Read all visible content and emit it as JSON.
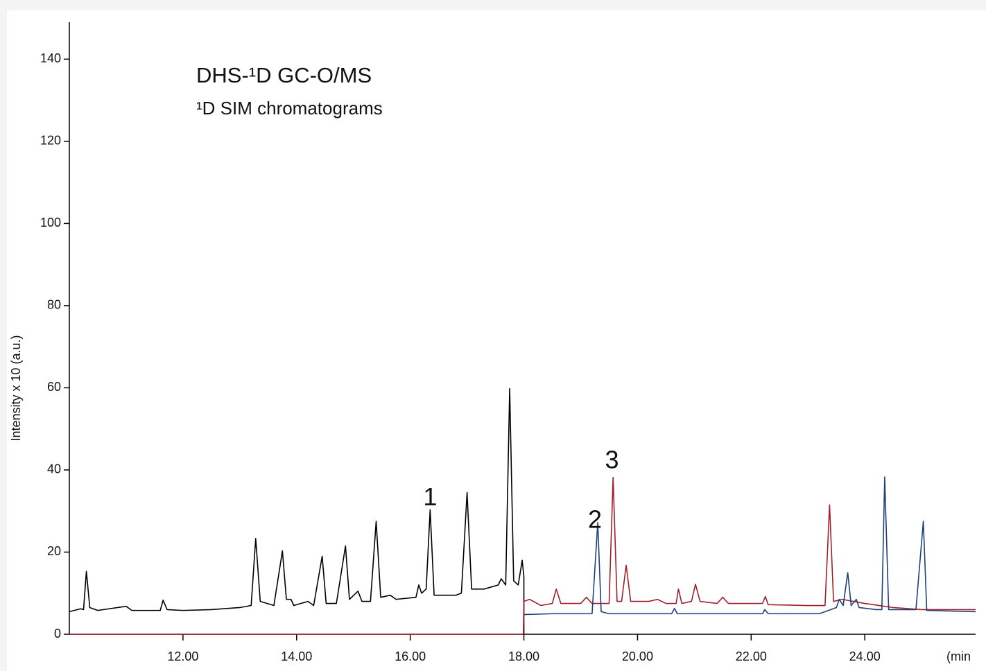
{
  "chart_data": {
    "type": "line",
    "title": "DHS-¹D GC-O/MS",
    "subtitle": "¹D SIM chromatograms",
    "y_label": "Intensity x 10 (a.u.)",
    "x_label": "(min",
    "xlim": [
      10,
      25.95
    ],
    "xticks": [
      {
        "value": 12,
        "label": "12.00"
      },
      {
        "value": 14,
        "label": "14.00"
      },
      {
        "value": 16,
        "label": "16.00"
      },
      {
        "value": 18,
        "label": "18.00"
      },
      {
        "value": 20,
        "label": "20.00"
      },
      {
        "value": 22,
        "label": "22.00"
      },
      {
        "value": 24,
        "label": "24.00"
      }
    ],
    "ylim": [
      0,
      149
    ],
    "yticks": [
      0,
      20,
      40,
      60,
      80,
      100,
      120,
      140
    ],
    "annotations": [
      {
        "text": "1",
        "x": 16.35,
        "y": 33
      },
      {
        "text": "2",
        "x": 19.25,
        "y": 27.5
      },
      {
        "text": "3",
        "x": 19.55,
        "y": 42
      }
    ],
    "series": [
      {
        "color": "#000000",
        "x": [
          10.0,
          10.2,
          10.25,
          10.3,
          10.36,
          10.5,
          11.0,
          11.1,
          11.6,
          11.65,
          11.72,
          12.0,
          12.5,
          13.0,
          13.2,
          13.28,
          13.36,
          13.6,
          13.75,
          13.82,
          13.9,
          13.95,
          14.2,
          14.3,
          14.45,
          14.52,
          14.7,
          14.86,
          14.93,
          15.08,
          15.15,
          15.3,
          15.4,
          15.48,
          15.65,
          15.75,
          16.1,
          16.15,
          16.2,
          16.28,
          16.35,
          16.42,
          16.8,
          16.9,
          17.0,
          17.08,
          17.3,
          17.55,
          17.6,
          17.68,
          17.75,
          17.82,
          17.9,
          17.97,
          18.0,
          18.0
        ],
        "values": [
          5.5,
          6.2,
          6,
          15.3,
          6.5,
          5.8,
          6.8,
          5.8,
          5.8,
          8.3,
          6,
          5.8,
          6,
          6.5,
          7,
          23.3,
          8,
          7,
          20.3,
          8.5,
          8.5,
          7,
          8,
          7,
          19,
          7.5,
          7.5,
          21.5,
          8.5,
          10.5,
          8,
          8,
          27.5,
          9,
          9.5,
          8.5,
          9,
          12,
          10,
          11,
          30.3,
          9.5,
          9.5,
          10,
          34.5,
          11,
          11,
          12,
          13.5,
          12,
          59.8,
          13,
          12,
          18,
          14,
          0
        ]
      },
      {
        "color": "#a0202a",
        "x": [
          10.0,
          17.99,
          18.0,
          18.1,
          18.3,
          18.5,
          18.57,
          18.65,
          19.0,
          19.1,
          19.2,
          19.5,
          19.57,
          19.64,
          19.72,
          19.8,
          19.88,
          20.2,
          20.35,
          20.5,
          20.68,
          20.72,
          20.78,
          20.95,
          21.02,
          21.1,
          21.4,
          21.5,
          21.6,
          22.2,
          22.25,
          22.3,
          23.0,
          23.3,
          23.38,
          23.45,
          23.6,
          24.0,
          24.5,
          25.0,
          25.5,
          25.95
        ],
        "values": [
          0,
          0,
          8,
          8.5,
          7,
          7.5,
          11,
          7.5,
          7.5,
          9,
          7.5,
          7.5,
          38.2,
          8,
          8,
          16.8,
          8,
          8,
          8.5,
          7.5,
          7.5,
          11,
          7.5,
          8,
          12.2,
          8,
          7.5,
          9,
          7.5,
          7.5,
          9.2,
          7.2,
          7,
          7,
          31.5,
          8,
          8.5,
          7.5,
          6.5,
          6,
          6,
          6
        ]
      },
      {
        "color": "#1f3f7a",
        "x": [
          18.0,
          18.5,
          19.2,
          19.3,
          19.36,
          19.5,
          20.6,
          20.65,
          20.7,
          22.2,
          22.24,
          22.3,
          23.2,
          23.5,
          23.55,
          23.62,
          23.7,
          23.76,
          23.85,
          23.9,
          24.2,
          24.3,
          24.35,
          24.42,
          24.9,
          25.03,
          25.09,
          25.95
        ],
        "values": [
          4.8,
          5,
          5,
          27.2,
          5.5,
          5,
          5,
          6.3,
          5,
          5,
          6,
          5,
          5,
          6.5,
          8.5,
          7,
          15,
          7,
          8.5,
          6.5,
          6,
          6,
          38.3,
          6,
          6,
          27.5,
          5.8,
          5.5
        ]
      }
    ]
  }
}
